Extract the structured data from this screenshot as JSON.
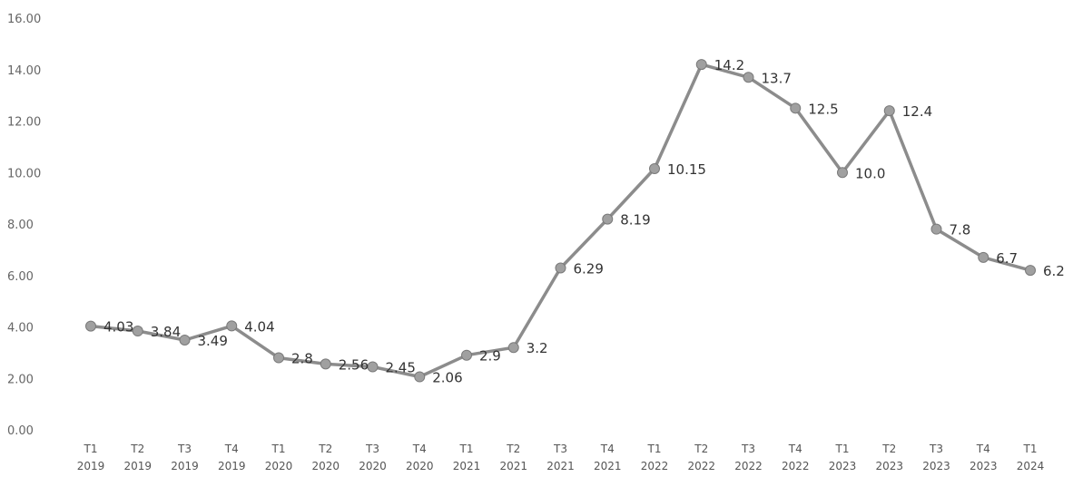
{
  "chart_data": {
    "type": "line",
    "title": "",
    "xlabel": "",
    "ylabel": "",
    "ylim": [
      0,
      16
    ],
    "yticks": [
      "0.00",
      "2.00",
      "4.00",
      "6.00",
      "8.00",
      "10.00",
      "12.00",
      "14.00",
      "16.00"
    ],
    "grid": false,
    "legend": "none",
    "categories": [
      [
        "T1",
        "2019"
      ],
      [
        "T2",
        "2019"
      ],
      [
        "T3",
        "2019"
      ],
      [
        "T4",
        "2019"
      ],
      [
        "T1",
        "2020"
      ],
      [
        "T2",
        "2020"
      ],
      [
        "T3",
        "2020"
      ],
      [
        "T4",
        "2020"
      ],
      [
        "T1",
        "2021"
      ],
      [
        "T2",
        "2021"
      ],
      [
        "T3",
        "2021"
      ],
      [
        "T4",
        "2021"
      ],
      [
        "T1",
        "2022"
      ],
      [
        "T2",
        "2022"
      ],
      [
        "T3",
        "2022"
      ],
      [
        "T4",
        "2022"
      ],
      [
        "T1",
        "2023"
      ],
      [
        "T2",
        "2023"
      ],
      [
        "T3",
        "2023"
      ],
      [
        "T4",
        "2023"
      ],
      [
        "T1",
        "2024"
      ]
    ],
    "series": [
      {
        "values": [
          4.03,
          3.84,
          3.49,
          4.04,
          2.8,
          2.56,
          2.45,
          2.06,
          2.9,
          3.2,
          6.29,
          8.19,
          10.15,
          14.2,
          13.7,
          12.5,
          10.0,
          12.4,
          7.8,
          6.7,
          6.2
        ],
        "labels": [
          "4.03",
          "3.84",
          "3.49",
          "4.04",
          "2.8",
          "2.56",
          "2.45",
          "2.06",
          "2.9",
          "3.2",
          "6.29",
          "8.19",
          "10.15",
          "14.2",
          "13.7",
          "12.5",
          "10.0",
          "12.4",
          "7.8",
          "6.7",
          "6.2"
        ]
      }
    ],
    "colors": {
      "line": "#8c8c8c",
      "marker": "#a0a0a0"
    }
  }
}
